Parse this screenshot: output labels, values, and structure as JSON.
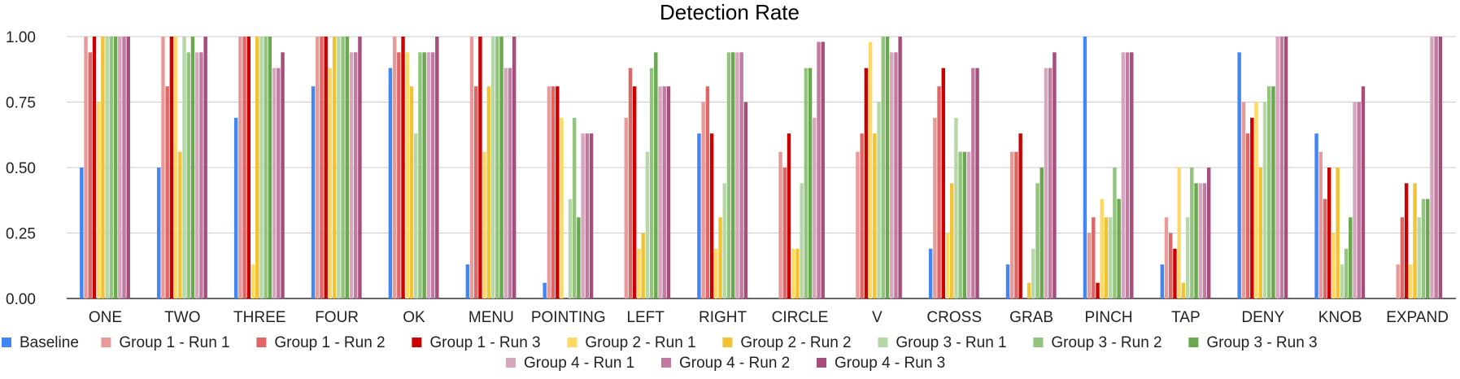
{
  "chart_data": {
    "type": "bar",
    "title": "Detection Rate",
    "xlabel": "",
    "ylabel": "",
    "ylim": [
      0,
      1
    ],
    "yticks": [
      "0.00",
      "0.25",
      "0.50",
      "0.75",
      "1.00"
    ],
    "grid": true,
    "legend_position": "bottom",
    "categories": [
      "ONE",
      "TWO",
      "THREE",
      "FOUR",
      "OK",
      "MENU",
      "POINTING",
      "LEFT",
      "RIGHT",
      "CIRCLE",
      "V",
      "CROSS",
      "GRAB",
      "PINCH",
      "TAP",
      "DENY",
      "KNOB",
      "EXPAND"
    ],
    "series": [
      {
        "name": "Baseline",
        "color": "#4285f4",
        "values": [
          0.5,
          0.5,
          0.69,
          0.81,
          0.88,
          0.13,
          0.06,
          0,
          0.63,
          0,
          0,
          0.19,
          0.13,
          1.0,
          0.13,
          0.94,
          0.63,
          0
        ]
      },
      {
        "name": "Group 1 - Run 1",
        "color": "#ea9999",
        "values": [
          1.0,
          1.0,
          1.0,
          1.0,
          1.0,
          1.0,
          0.81,
          0.69,
          0.75,
          0.56,
          0.56,
          0.69,
          0.56,
          0.25,
          0.31,
          0.75,
          0.56,
          0.13
        ]
      },
      {
        "name": "Group 1 - Run 2",
        "color": "#e06666",
        "values": [
          0.94,
          0.81,
          1.0,
          1.0,
          0.94,
          0.81,
          0.81,
          0.88,
          0.81,
          0.5,
          0.63,
          0.81,
          0.56,
          0.31,
          0.25,
          0.63,
          0.38,
          0.31
        ]
      },
      {
        "name": "Group 1 - Run 3",
        "color": "#cc0000",
        "values": [
          1.0,
          1.0,
          1.0,
          1.0,
          1.0,
          1.0,
          0.81,
          0.81,
          0.63,
          0.63,
          0.88,
          0.88,
          0.63,
          0.06,
          0.19,
          0.69,
          0.5,
          0.44
        ]
      },
      {
        "name": "Group 2 - Run 1",
        "color": "#ffd966",
        "values": [
          0.75,
          1.0,
          0.13,
          0.88,
          0.94,
          0.56,
          0.69,
          0.19,
          0.19,
          0.19,
          0.98,
          0.25,
          0,
          0.38,
          0.5,
          0.75,
          0.25,
          0.13
        ]
      },
      {
        "name": "Group 2 - Run 2",
        "color": "#f1c232",
        "values": [
          1.0,
          0.56,
          1.0,
          1.0,
          0.81,
          0.81,
          0,
          0.25,
          0.31,
          0.19,
          0.63,
          0.44,
          0.06,
          0.31,
          0.06,
          0.5,
          0.5,
          0.44
        ]
      },
      {
        "name": "Group 3 - Run 1",
        "color": "#b6d7a8",
        "values": [
          1.0,
          1.0,
          1.0,
          1.0,
          0.63,
          1.0,
          0.38,
          0.56,
          0.44,
          0.44,
          0.75,
          0.69,
          0.19,
          0.31,
          0.31,
          0.75,
          0.13,
          0.31
        ]
      },
      {
        "name": "Group 3 - Run 2",
        "color": "#93c47d",
        "values": [
          1.0,
          0.94,
          1.0,
          1.0,
          0.94,
          1.0,
          0.69,
          0.88,
          0.94,
          0.88,
          1.0,
          0.56,
          0.44,
          0.5,
          0.5,
          0.81,
          0.19,
          0.38
        ]
      },
      {
        "name": "Group 3 - Run 3",
        "color": "#6aa84f",
        "values": [
          1.0,
          1.0,
          1.0,
          1.0,
          0.94,
          1.0,
          0.31,
          0.94,
          0.94,
          0.88,
          1.0,
          0.56,
          0.5,
          0.38,
          0.44,
          0.81,
          0.31,
          0.38
        ]
      },
      {
        "name": "Group 4 - Run 1",
        "color": "#d5a6bd",
        "values": [
          1.0,
          0.94,
          0.88,
          0.94,
          0.94,
          0.88,
          0.63,
          0.81,
          0.94,
          0.69,
          0.94,
          0.56,
          0.88,
          0.94,
          0.44,
          1.0,
          0.75,
          1.0
        ]
      },
      {
        "name": "Group 4 - Run 2",
        "color": "#c27ba0",
        "values": [
          1.0,
          0.94,
          0.88,
          0.94,
          0.94,
          0.88,
          0.63,
          0.81,
          0.94,
          0.98,
          0.94,
          0.88,
          0.88,
          0.94,
          0.44,
          1.0,
          0.75,
          1.0
        ]
      },
      {
        "name": "Group 4 - Run 3",
        "color": "#a64d79",
        "values": [
          1.0,
          1.0,
          0.94,
          1.0,
          1.0,
          1.0,
          0.63,
          0.81,
          0.75,
          0.98,
          1.0,
          0.88,
          0.94,
          0.94,
          0.5,
          1.0,
          0.81,
          1.0
        ]
      }
    ]
  }
}
